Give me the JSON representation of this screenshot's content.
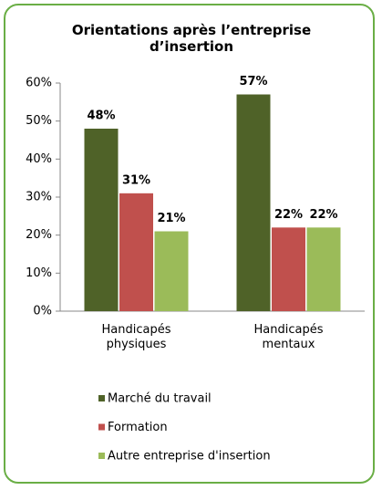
{
  "chart_data": {
    "type": "bar",
    "title": "Orientations après l’entreprise d’insertion",
    "categories": [
      "Handicapés physiques",
      "Handicapés mentaux"
    ],
    "series": [
      {
        "name": "Marché du travail",
        "color": "#4f6228",
        "values": [
          48,
          57
        ],
        "value_labels": [
          "48%",
          "57%"
        ]
      },
      {
        "name": "Formation",
        "color": "#c0504d",
        "values": [
          31,
          22
        ],
        "value_labels": [
          "31%",
          "22%"
        ]
      },
      {
        "name": "Autre entreprise d'insertion",
        "color": "#9bbb59",
        "values": [
          21,
          22
        ],
        "value_labels": [
          "21%",
          "22%"
        ]
      }
    ],
    "ylim": [
      0,
      60
    ],
    "yticks": [
      {
        "value": 0,
        "label": "0%"
      },
      {
        "value": 10,
        "label": "10%"
      },
      {
        "value": 20,
        "label": "20%"
      },
      {
        "value": 30,
        "label": "30%"
      },
      {
        "value": 40,
        "label": "40%"
      },
      {
        "value": 50,
        "label": "50%"
      },
      {
        "value": 60,
        "label": "60%"
      }
    ],
    "legend": "bottom",
    "grid": false
  }
}
